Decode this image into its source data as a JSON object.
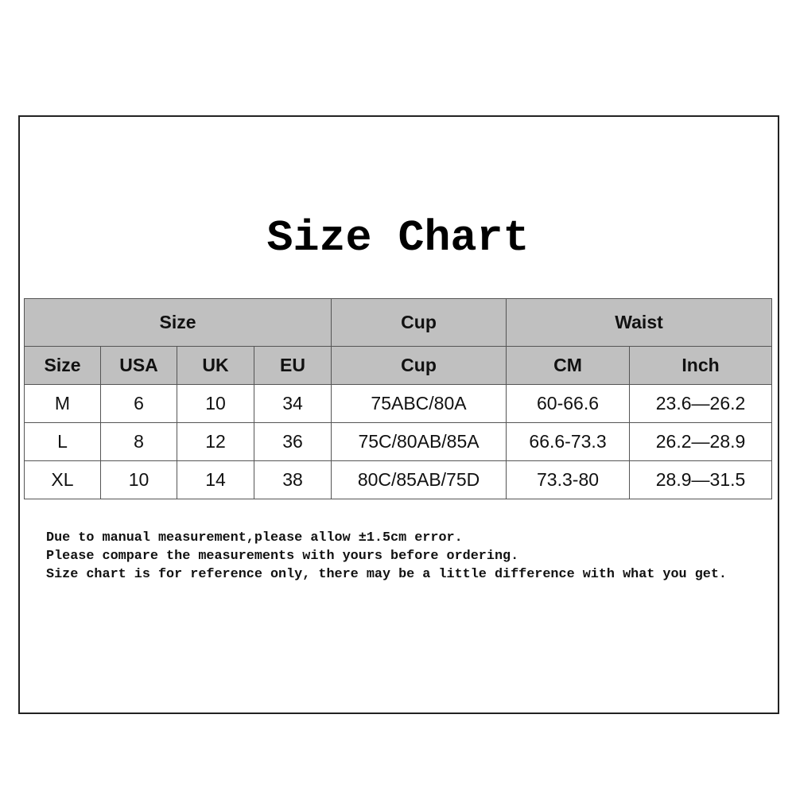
{
  "title": "Size Chart",
  "table": {
    "group_headers": [
      "Size",
      "Cup",
      "Waist"
    ],
    "sub_headers": [
      "Size",
      "USA",
      "UK",
      "EU",
      "Cup",
      "CM",
      "Inch"
    ],
    "rows": [
      [
        "M",
        "6",
        "10",
        "34",
        "75ABC/80A",
        "60-66.6",
        "23.6—26.2"
      ],
      [
        "L",
        "8",
        "12",
        "36",
        "75C/80AB/85A",
        "66.6-73.3",
        "26.2—28.9"
      ],
      [
        "XL",
        "10",
        "14",
        "38",
        "80C/85AB/75D",
        "73.3-80",
        "28.9—31.5"
      ]
    ],
    "header_bg": "#c0c0c0"
  },
  "notes": [
    "Due to manual measurement,please allow ±1.5cm error.",
    "Please compare the measurements with yours before ordering.",
    "Size chart is for reference only, there may be a little difference with what you get."
  ]
}
